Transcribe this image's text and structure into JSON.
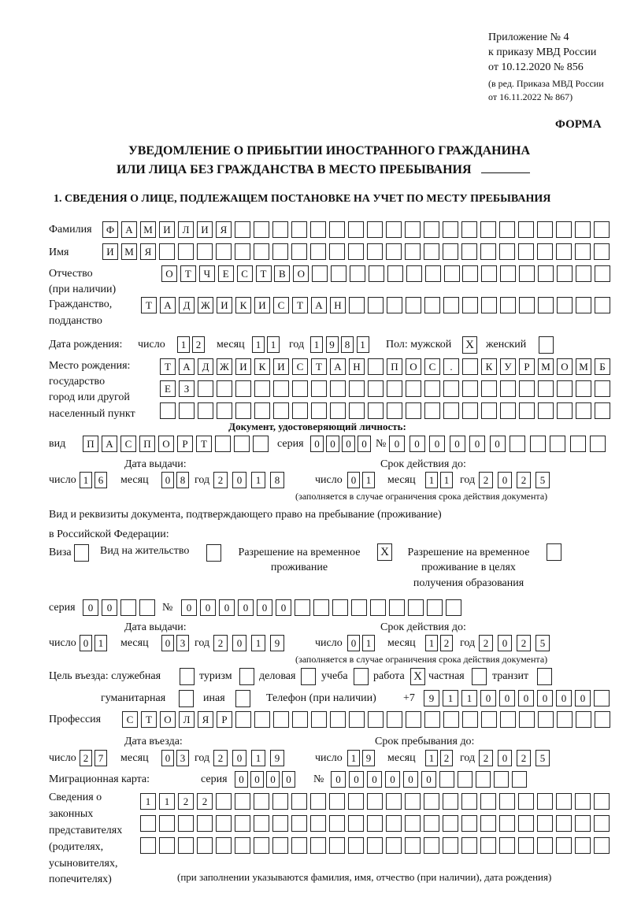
{
  "header": {
    "appendix": "Приложение № 4",
    "order": "к приказу МВД России",
    "order_date": "от 10.12.2020 № 856",
    "edition_1": "(в ред. Приказа МВД России",
    "edition_2": "от 16.11.2022 № 867)",
    "form_label": "ФОРМА",
    "title_1": "УВЕДОМЛЕНИЕ О ПРИБЫТИИ ИНОСТРАННОГО ГРАЖДАНИНА",
    "title_2": "ИЛИ ЛИЦА БЕЗ ГРАЖДАНСТВА В МЕСТО ПРЕБЫВАНИЯ",
    "section_1": "1. СВЕДЕНИЯ О ЛИЦЕ, ПОДЛЕЖАЩЕМ ПОСТАНОВКЕ НА УЧЕТ ПО МЕСТУ ПРЕБЫВАНИЯ"
  },
  "labels": {
    "surname": "Фамилия",
    "name": "Имя",
    "patronymic": "Отчество",
    "patronymic_note": "(при наличии)",
    "citizenship": "Гражданство,",
    "citizenship_2": "подданство",
    "birth_date": "Дата рождения:",
    "day": "число",
    "month": "месяц",
    "year": "год",
    "sex": "Пол: мужской",
    "female": "женский",
    "birth_place_1": "Место рождения:",
    "birth_place_2": "государство",
    "birth_place_3": "город или другой",
    "birth_place_4": "населенный пункт",
    "id_doc": "Документ, удостоверяющий личность:",
    "kind": "вид",
    "series": "серия",
    "number": "№",
    "issue_date": "Дата выдачи:",
    "valid_until": "Срок действия до:",
    "validity_note": "(заполняется в случае ограничения срока действия документа)",
    "right_doc_1": "Вид и реквизиты документа, подтверждающего право на пребывание (проживание)",
    "right_doc_2": "в Российской Федерации:",
    "visa": "Виза",
    "residence_permit": "Вид на жительство",
    "temp_permit_1": "Разрешение на временное",
    "temp_permit_2": "проживание",
    "temp_edu_1": "Разрешение на временное",
    "temp_edu_2": "проживание в целях",
    "temp_edu_3": "получения образования",
    "purpose": "Цель въезда: служебная",
    "tourism": "туризм",
    "business": "деловая",
    "study": "учеба",
    "work": "работа",
    "private": "частная",
    "transit": "транзит",
    "humanitarian": "гуманитарная",
    "other": "иная",
    "phone": "Телефон (при наличии)",
    "phone_prefix": "+7",
    "profession": "Профессия",
    "entry_date": "Дата въезда:",
    "stay_until": "Срок пребывания до:",
    "migration_card": "Миграционная карта:",
    "reps_1": "Сведения о",
    "reps_2": "законных",
    "reps_3": "представителях",
    "reps_4": "(родителях,",
    "reps_5": "усыновителях,",
    "reps_6": "попечителях)",
    "reps_note": "(при заполнении указываются фамилия, имя, отчество (при наличии), дата рождения)"
  },
  "person": {
    "surname": [
      "Ф",
      "А",
      "М",
      "И",
      "Л",
      "И",
      "Я"
    ],
    "name": [
      "И",
      "М",
      "Я"
    ],
    "patronymic": [
      "О",
      "Т",
      "Ч",
      "Е",
      "С",
      "Т",
      "В",
      "О"
    ],
    "citizenship": [
      "Т",
      "А",
      "Д",
      "Ж",
      "И",
      "К",
      "И",
      "С",
      "Т",
      "А",
      "Н"
    ],
    "birth_day": [
      "1",
      "2"
    ],
    "birth_month": [
      "1",
      "1"
    ],
    "birth_year": [
      "1",
      "9",
      "8",
      "1"
    ],
    "sex_male": "X",
    "sex_female": "",
    "birth_place_1": [
      "Т",
      "А",
      "Д",
      "Ж",
      "И",
      "К",
      "И",
      "С",
      "Т",
      "А",
      "Н",
      "",
      "П",
      "О",
      "С",
      ".",
      "",
      "К",
      "У",
      "Р",
      "М",
      "О",
      "М",
      "Б"
    ],
    "birth_place_2": [
      "Е",
      "З"
    ],
    "birth_place_3": []
  },
  "id_document": {
    "kind": [
      "П",
      "А",
      "С",
      "П",
      "О",
      "Р",
      "Т"
    ],
    "series": [
      "0",
      "0",
      "0",
      "0"
    ],
    "number": [
      "0",
      "0",
      "0",
      "0",
      "0",
      "0"
    ],
    "issue_day": [
      "1",
      "6"
    ],
    "issue_month": [
      "0",
      "8"
    ],
    "issue_year": [
      "2",
      "0",
      "1",
      "8"
    ],
    "valid_day": [
      "0",
      "1"
    ],
    "valid_month": [
      "1",
      "1"
    ],
    "valid_year": [
      "2",
      "0",
      "2",
      "5"
    ]
  },
  "right_document": {
    "visa": "",
    "residence_permit": "",
    "temp_permit": "X",
    "temp_edu": "",
    "series": [
      "0",
      "0"
    ],
    "number": [
      "0",
      "0",
      "0",
      "0",
      "0",
      "0"
    ],
    "issue_day": [
      "0",
      "1"
    ],
    "issue_month": [
      "0",
      "3"
    ],
    "issue_year": [
      "2",
      "0",
      "1",
      "9"
    ],
    "valid_day": [
      "0",
      "1"
    ],
    "valid_month": [
      "1",
      "2"
    ],
    "valid_year": [
      "2",
      "0",
      "2",
      "5"
    ]
  },
  "purpose": {
    "official": "",
    "tourism": "",
    "business": "",
    "study": "",
    "work": "X",
    "private": "",
    "transit": "",
    "humanitarian": "",
    "other": ""
  },
  "phone": [
    "9",
    "1",
    "1",
    "0",
    "0",
    "0",
    "0",
    "0",
    "0"
  ],
  "profession": [
    "С",
    "Т",
    "О",
    "Л",
    "Я",
    "Р"
  ],
  "stay": {
    "entry_day": [
      "2",
      "7"
    ],
    "entry_month": [
      "0",
      "3"
    ],
    "entry_year": [
      "2",
      "0",
      "1",
      "9"
    ],
    "until_day": [
      "1",
      "9"
    ],
    "until_month": [
      "1",
      "2"
    ],
    "until_year": [
      "2",
      "0",
      "2",
      "5"
    ]
  },
  "migration_card": {
    "series": [
      "0",
      "0",
      "0",
      "0"
    ],
    "number": [
      "0",
      "0",
      "0",
      "0",
      "0",
      "0"
    ]
  },
  "representatives": {
    "row_1": [
      "1",
      "1",
      "2",
      "2"
    ],
    "row_2": [],
    "row_3": []
  }
}
